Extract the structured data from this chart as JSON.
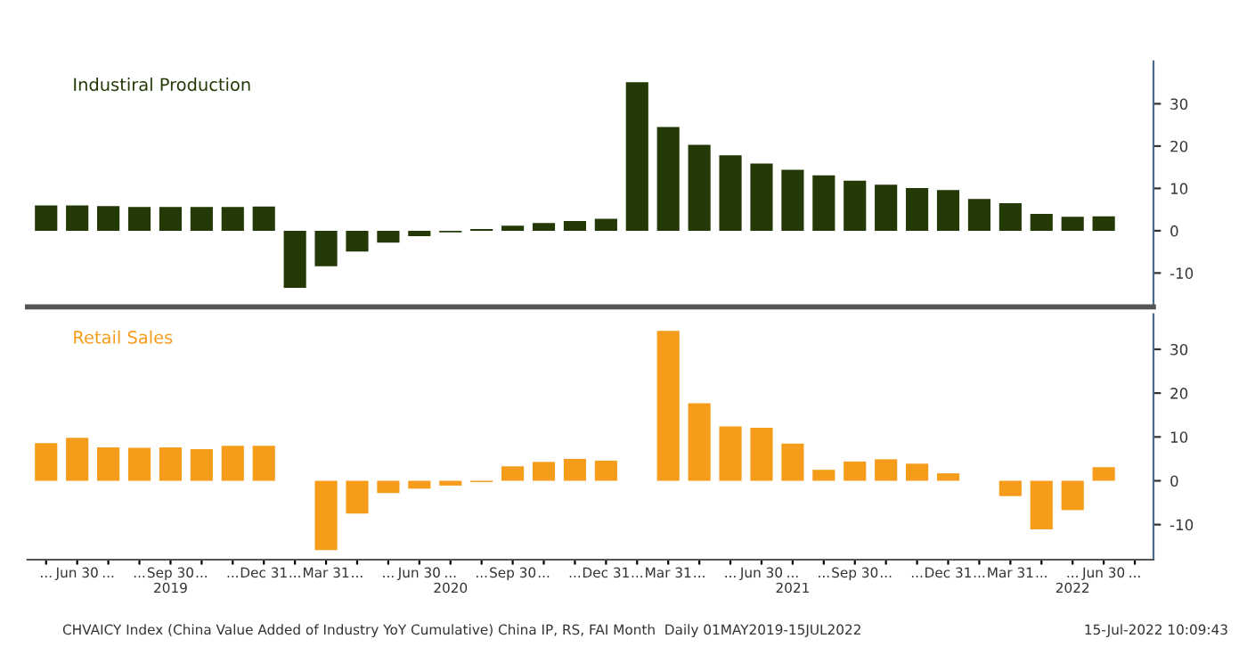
{
  "chart_data": [
    {
      "type": "bar",
      "tick_labels": "y",
      "categories": [
        null,
        null,
        null,
        null,
        null,
        null,
        null,
        null,
        null,
        null,
        null,
        null,
        null,
        null,
        null,
        null,
        null,
        null,
        null,
        null,
        null,
        null,
        null,
        null,
        null,
        null,
        null,
        null,
        null,
        null,
        null,
        null,
        null,
        null,
        null,
        null
      ],
      "series": [
        {
          "name": "Industiral Production",
          "color": "#243a06",
          "values": [
            6.0,
            6.0,
            5.8,
            5.6,
            5.6,
            5.6,
            5.6,
            5.7,
            -13.5,
            -8.4,
            -4.9,
            -2.8,
            -1.3,
            -0.4,
            0.4,
            1.2,
            1.8,
            2.3,
            2.8,
            35.1,
            24.5,
            20.3,
            17.8,
            15.9,
            14.4,
            13.1,
            11.8,
            10.9,
            10.1,
            9.6,
            7.5,
            6.5,
            4.0,
            3.3,
            3.4,
            null
          ]
        }
      ],
      "ylim": [
        -18,
        40
      ],
      "yticks": [
        -10,
        0,
        10,
        20,
        30
      ],
      "grid": false,
      "legend": false
    },
    {
      "type": "bar",
      "categories": [
        "...",
        "Jun 30",
        "...",
        "...",
        "Sep 30\n2019",
        "...",
        "...",
        "Dec 31",
        "...",
        "Mar 31",
        "...",
        "...",
        "Jun 30",
        "...\n2020",
        "...",
        "Sep 30",
        "...",
        "...",
        "Dec 31",
        "...",
        "Mar 31",
        "...",
        "...",
        "Jun 30",
        "...\n2021",
        "...",
        "Sep 30",
        "...",
        "...",
        "Dec 31",
        "...",
        "Mar 31",
        "...",
        "...\n2022",
        "Jun 30",
        "..."
      ],
      "series": [
        {
          "name": "Retail Sales",
          "color": "#f59c1a",
          "values": [
            8.6,
            9.8,
            7.6,
            7.5,
            7.6,
            7.2,
            8.0,
            8.0,
            null,
            -15.8,
            -7.5,
            -2.8,
            -1.8,
            -1.1,
            -0.3,
            3.3,
            4.3,
            5.0,
            4.6,
            null,
            34.2,
            17.7,
            12.4,
            12.1,
            8.5,
            2.5,
            4.4,
            4.9,
            3.9,
            1.7,
            null,
            -3.5,
            -11.1,
            -6.7,
            3.1,
            null
          ]
        }
      ],
      "ylim": [
        -18,
        38
      ],
      "yticks": [
        -10,
        0,
        10,
        20,
        30
      ],
      "grid": false,
      "legend": false,
      "annotations": [
        "CHVAICY Index (China Value Added of Industry YoY Cumulative) China IP, RS, FAI Month  Daily 01MAY2019-15JUL2022",
        "15-Jul-2022 10:09:43"
      ]
    }
  ]
}
